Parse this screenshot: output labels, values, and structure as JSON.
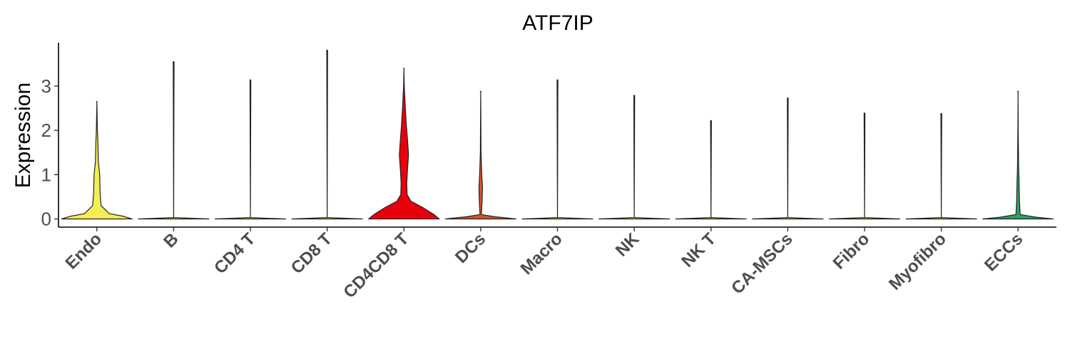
{
  "chart_data": {
    "type": "violin",
    "title": "ATF7IP",
    "xlabel": "",
    "ylabel": "Expression",
    "ylim": [
      -0.18,
      3.95
    ],
    "yticks": [
      0,
      1,
      2,
      3
    ],
    "grid": false,
    "legend": "none",
    "categories": [
      "Endo",
      "B",
      "CD4 T",
      "CD8 T",
      "CD4CD8 T",
      "DCs",
      "Macro",
      "NK",
      "NK T",
      "CA-MSCs",
      "Fibro",
      "Myofibro",
      "ECCs"
    ],
    "series": [
      {
        "category": "Endo",
        "color": "#f5ee52",
        "max": 2.65,
        "density": [
          [
            0,
            1.0
          ],
          [
            0.06,
            0.75
          ],
          [
            0.12,
            0.35
          ],
          [
            0.3,
            0.12
          ],
          [
            0.6,
            0.09
          ],
          [
            1.0,
            0.08
          ],
          [
            1.3,
            0.04
          ],
          [
            1.7,
            0.03
          ],
          [
            2.0,
            0.015
          ],
          [
            2.65,
            0.0
          ]
        ]
      },
      {
        "category": "B",
        "color": "#f5ee52",
        "max": 3.55,
        "density": [
          [
            0,
            1.0
          ],
          [
            0.03,
            0.0
          ]
        ]
      },
      {
        "category": "CD4 T",
        "color": "#f5ee52",
        "max": 3.14,
        "density": [
          [
            0,
            1.0
          ],
          [
            0.03,
            0.0
          ]
        ]
      },
      {
        "category": "CD8 T",
        "color": "#f5ee52",
        "max": 3.81,
        "density": [
          [
            0,
            1.0
          ],
          [
            0.03,
            0.0
          ]
        ]
      },
      {
        "category": "CD4CD8 T",
        "color": "#e8000b",
        "max": 3.4,
        "density": [
          [
            0,
            1.0
          ],
          [
            0.1,
            0.85
          ],
          [
            0.25,
            0.55
          ],
          [
            0.4,
            0.2
          ],
          [
            0.55,
            0.09
          ],
          [
            0.8,
            0.08
          ],
          [
            1.1,
            0.1
          ],
          [
            1.45,
            0.13
          ],
          [
            1.8,
            0.1
          ],
          [
            2.1,
            0.07
          ],
          [
            2.5,
            0.04
          ],
          [
            3.0,
            0.01
          ],
          [
            3.4,
            0.0
          ]
        ]
      },
      {
        "category": "DCs",
        "color": "#d9532a",
        "max": 2.88,
        "density": [
          [
            0,
            1.0
          ],
          [
            0.05,
            0.4
          ],
          [
            0.1,
            0.02
          ],
          [
            0.4,
            0.04
          ],
          [
            0.7,
            0.05
          ],
          [
            1.0,
            0.03
          ],
          [
            1.5,
            0.01
          ],
          [
            2.88,
            0.0
          ]
        ]
      },
      {
        "category": "Macro",
        "color": "#f5ee52",
        "max": 3.14,
        "density": [
          [
            0,
            1.0
          ],
          [
            0.03,
            0.0
          ]
        ]
      },
      {
        "category": "NK",
        "color": "#f5ee52",
        "max": 2.79,
        "density": [
          [
            0,
            1.0
          ],
          [
            0.03,
            0.0
          ]
        ]
      },
      {
        "category": "NK T",
        "color": "#f5ee52",
        "max": 2.22,
        "density": [
          [
            0,
            1.0
          ],
          [
            0.03,
            0.0
          ]
        ]
      },
      {
        "category": "CA-MSCs",
        "color": "#f5ee52",
        "max": 2.73,
        "density": [
          [
            0,
            1.0
          ],
          [
            0.03,
            0.0
          ]
        ]
      },
      {
        "category": "Fibro",
        "color": "#f5ee52",
        "max": 2.39,
        "density": [
          [
            0,
            1.0
          ],
          [
            0.03,
            0.0
          ]
        ]
      },
      {
        "category": "Myofibro",
        "color": "#f5ee52",
        "max": 2.38,
        "density": [
          [
            0,
            1.0
          ],
          [
            0.03,
            0.0
          ]
        ]
      },
      {
        "category": "ECCs",
        "color": "#2ca25f",
        "max": 2.88,
        "density": [
          [
            0,
            1.0
          ],
          [
            0.04,
            0.5
          ],
          [
            0.1,
            0.06
          ],
          [
            0.4,
            0.04
          ],
          [
            0.8,
            0.03
          ],
          [
            1.2,
            0.015
          ],
          [
            2.0,
            0.005
          ],
          [
            2.88,
            0.0
          ]
        ]
      }
    ]
  }
}
